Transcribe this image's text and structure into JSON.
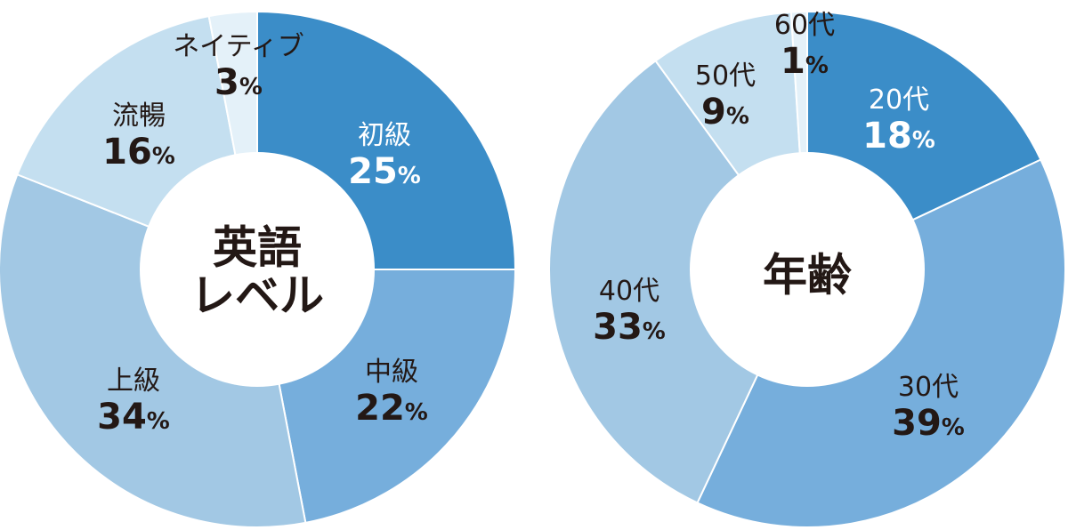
{
  "chart_data": [
    {
      "type": "pie",
      "center_label": [
        "英語",
        "レベル"
      ],
      "labels": [
        "初級",
        "中級",
        "上級",
        "流暢",
        "ネイティブ"
      ],
      "values": [
        25,
        22,
        34,
        16,
        3
      ],
      "colors": [
        "#3b8dc8",
        "#76aedc",
        "#a2c8e4",
        "#c4dff0",
        "#e4f1f9"
      ],
      "label_colors": [
        "#ffffff",
        "#231815",
        "#231815",
        "#231815",
        "#231815"
      ],
      "unit": "%"
    },
    {
      "type": "pie",
      "center_label": [
        "年齢"
      ],
      "labels": [
        "20代",
        "30代",
        "40代",
        "50代",
        "60代"
      ],
      "values": [
        18,
        39,
        33,
        9,
        1
      ],
      "colors": [
        "#3b8dc8",
        "#76aedc",
        "#a2c8e4",
        "#c4dff0",
        "#e4f1f9"
      ],
      "label_colors": [
        "#ffffff",
        "#231815",
        "#231815",
        "#231815",
        "#231815"
      ],
      "unit": "%"
    }
  ]
}
